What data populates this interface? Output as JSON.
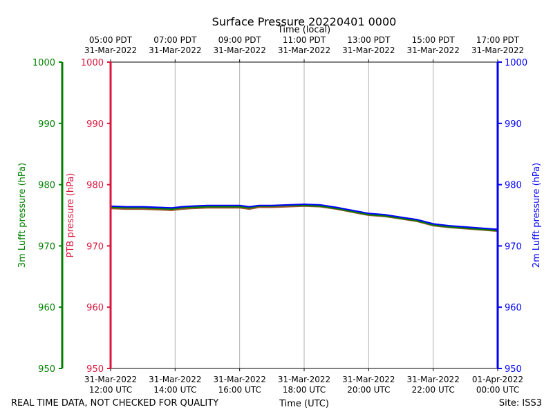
{
  "chart_data": {
    "type": "line",
    "title": "Surface Pressure 20220401 0000",
    "xlabel_bottom": "Time (UTC)",
    "xlabel_top": "Time (local)",
    "x_unit": "hours since 31-Mar-2022 12:00 UTC",
    "xlim": [
      0,
      12
    ],
    "ylim": [
      950,
      1000
    ],
    "y_ticks": [
      950,
      960,
      970,
      980,
      990,
      1000
    ],
    "axes": {
      "left_outer": {
        "label": "3m Lufft pressure (hPa)",
        "color": "#008000"
      },
      "left_inner": {
        "label": "PTB pressure (hPa)",
        "color": "#dc143c"
      },
      "right": {
        "label": "2m Lufft pressure (hPa)",
        "color": "#0000ff"
      }
    },
    "bottom_ticks": [
      {
        "x": 0,
        "line1": "31-Mar-2022",
        "line2": "12:00 UTC"
      },
      {
        "x": 2,
        "line1": "31-Mar-2022",
        "line2": "14:00 UTC"
      },
      {
        "x": 4,
        "line1": "31-Mar-2022",
        "line2": "16:00 UTC"
      },
      {
        "x": 6,
        "line1": "31-Mar-2022",
        "line2": "18:00 UTC"
      },
      {
        "x": 8,
        "line1": "31-Mar-2022",
        "line2": "20:00 UTC"
      },
      {
        "x": 10,
        "line1": "31-Mar-2022",
        "line2": "22:00 UTC"
      },
      {
        "x": 12,
        "line1": "01-Apr-2022",
        "line2": "00:00 UTC"
      }
    ],
    "top_ticks": [
      {
        "x": 0,
        "line1": "05:00 PDT",
        "line2": "31-Mar-2022"
      },
      {
        "x": 2,
        "line1": "07:00 PDT",
        "line2": "31-Mar-2022"
      },
      {
        "x": 4,
        "line1": "09:00 PDT",
        "line2": "31-Mar-2022"
      },
      {
        "x": 6,
        "line1": "11:00 PDT",
        "line2": "31-Mar-2022"
      },
      {
        "x": 8,
        "line1": "13:00 PDT",
        "line2": "31-Mar-2022"
      },
      {
        "x": 10,
        "line1": "15:00 PDT",
        "line2": "31-Mar-2022"
      },
      {
        "x": 12,
        "line1": "17:00 PDT",
        "line2": "31-Mar-2022"
      }
    ],
    "series": [
      {
        "name": "PTB pressure",
        "color": "#a0522d",
        "x": [
          0,
          0.5,
          1,
          1.5,
          1.9,
          2.2,
          2.5,
          3,
          3.5,
          4,
          4.3,
          4.6,
          5,
          5.5,
          6,
          6.5,
          7,
          7.5,
          8,
          8.5,
          9,
          9.5,
          10,
          10.5,
          11,
          11.5,
          12
        ],
        "values": [
          976.1,
          976.0,
          976.0,
          975.9,
          975.8,
          976.0,
          976.1,
          976.2,
          976.2,
          976.2,
          976.0,
          976.3,
          976.3,
          976.4,
          976.5,
          976.4,
          976.0,
          975.5,
          975.0,
          974.8,
          974.4,
          974.0,
          973.3,
          973.0,
          972.8,
          972.6,
          972.4
        ]
      },
      {
        "name": "3m Lufft pressure",
        "color": "#008000",
        "x": [
          0,
          0.5,
          1,
          1.5,
          1.9,
          2.2,
          2.5,
          3,
          3.5,
          4,
          4.3,
          4.6,
          5,
          5.5,
          6,
          6.5,
          7,
          7.5,
          8,
          8.5,
          9,
          9.5,
          10,
          10.5,
          11,
          11.5,
          12
        ],
        "values": [
          976.3,
          976.2,
          976.2,
          976.1,
          976.0,
          976.2,
          976.3,
          976.4,
          976.4,
          976.4,
          976.2,
          976.5,
          976.5,
          976.6,
          976.6,
          976.5,
          976.1,
          975.6,
          975.1,
          974.9,
          974.5,
          974.1,
          973.4,
          973.1,
          972.9,
          972.7,
          972.5
        ]
      },
      {
        "name": "2m Lufft pressure",
        "color": "#0000ff",
        "x": [
          0,
          0.5,
          1,
          1.5,
          1.9,
          2.2,
          2.5,
          3,
          3.5,
          4,
          4.3,
          4.6,
          5,
          5.5,
          6,
          6.5,
          7,
          7.5,
          8,
          8.5,
          9,
          9.5,
          10,
          10.5,
          11,
          11.5,
          12
        ],
        "values": [
          976.5,
          976.4,
          976.4,
          976.3,
          976.2,
          976.4,
          976.5,
          976.6,
          976.6,
          976.6,
          976.4,
          976.6,
          976.6,
          976.7,
          976.8,
          976.7,
          976.3,
          975.8,
          975.3,
          975.1,
          974.7,
          974.3,
          973.6,
          973.3,
          973.1,
          972.9,
          972.7
        ]
      }
    ]
  },
  "footer": {
    "quality_note": "REAL TIME DATA, NOT CHECKED FOR QUALITY",
    "site": "Site: ISS3"
  }
}
